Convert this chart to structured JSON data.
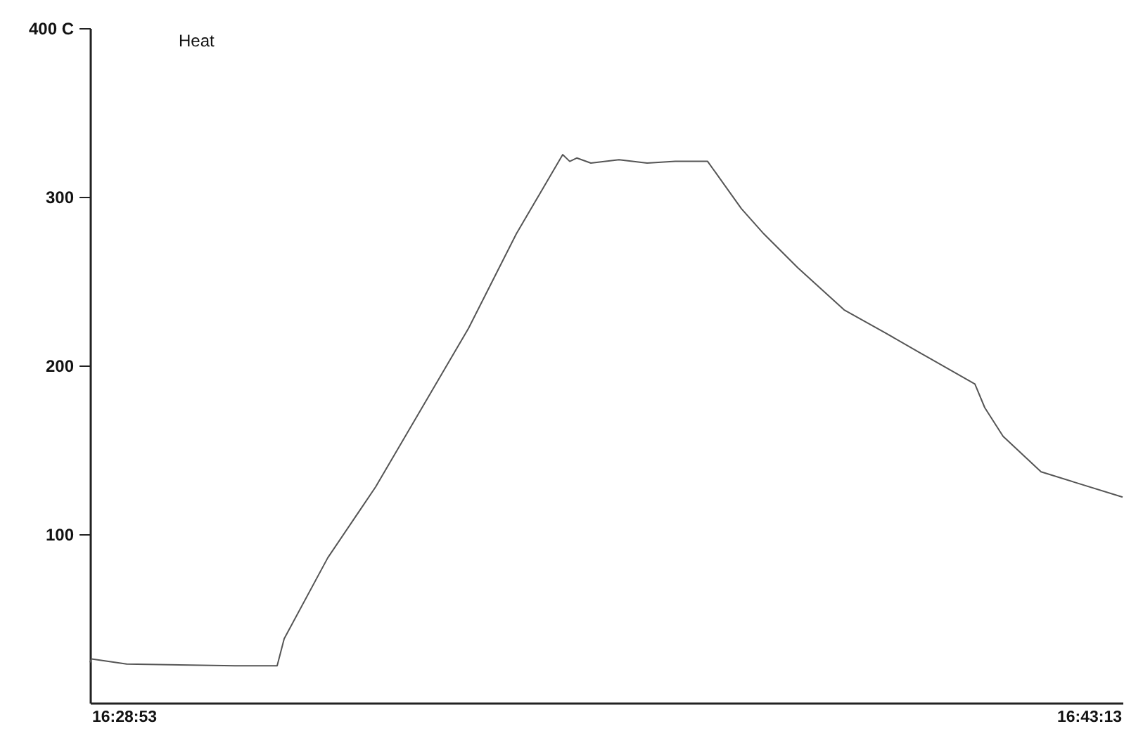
{
  "chart_data": {
    "type": "line",
    "title": "Heat",
    "x": [
      16.47303,
      16.47338,
      16.48209,
      16.5089,
      16.51935,
      16.52109,
      16.53188,
      16.54373,
      16.55522,
      16.56671,
      16.57855,
      16.59004,
      16.59178,
      16.59352,
      16.59701,
      16.60397,
      16.61094,
      16.6179,
      16.62591,
      16.63427,
      16.63984,
      16.6482,
      16.65969,
      16.67014,
      16.67815,
      16.69208,
      16.69452,
      16.69905,
      16.70845,
      16.71646,
      16.72864
    ],
    "series": [
      {
        "color": "#555555",
        "values": [
          24,
          26,
          23,
          22,
          22,
          38,
          86,
          128,
          175,
          222,
          278,
          325,
          321,
          323,
          320,
          322,
          320,
          321,
          321,
          293,
          278,
          258,
          233,
          219,
          208,
          189,
          175,
          158,
          137,
          131,
          122
        ]
      }
    ],
    "xlim": [
      16.47303,
      16.72864
    ],
    "xticks": [
      {
        "value": 16.48139,
        "label": "16:28:53"
      },
      {
        "value": 16.72028,
        "label": "16:43:13"
      }
    ],
    "ylim": [
      0,
      400
    ],
    "yticks": [
      100,
      200,
      300,
      {
        "value": 400,
        "label": "400 C"
      }
    ],
    "grid": false
  }
}
